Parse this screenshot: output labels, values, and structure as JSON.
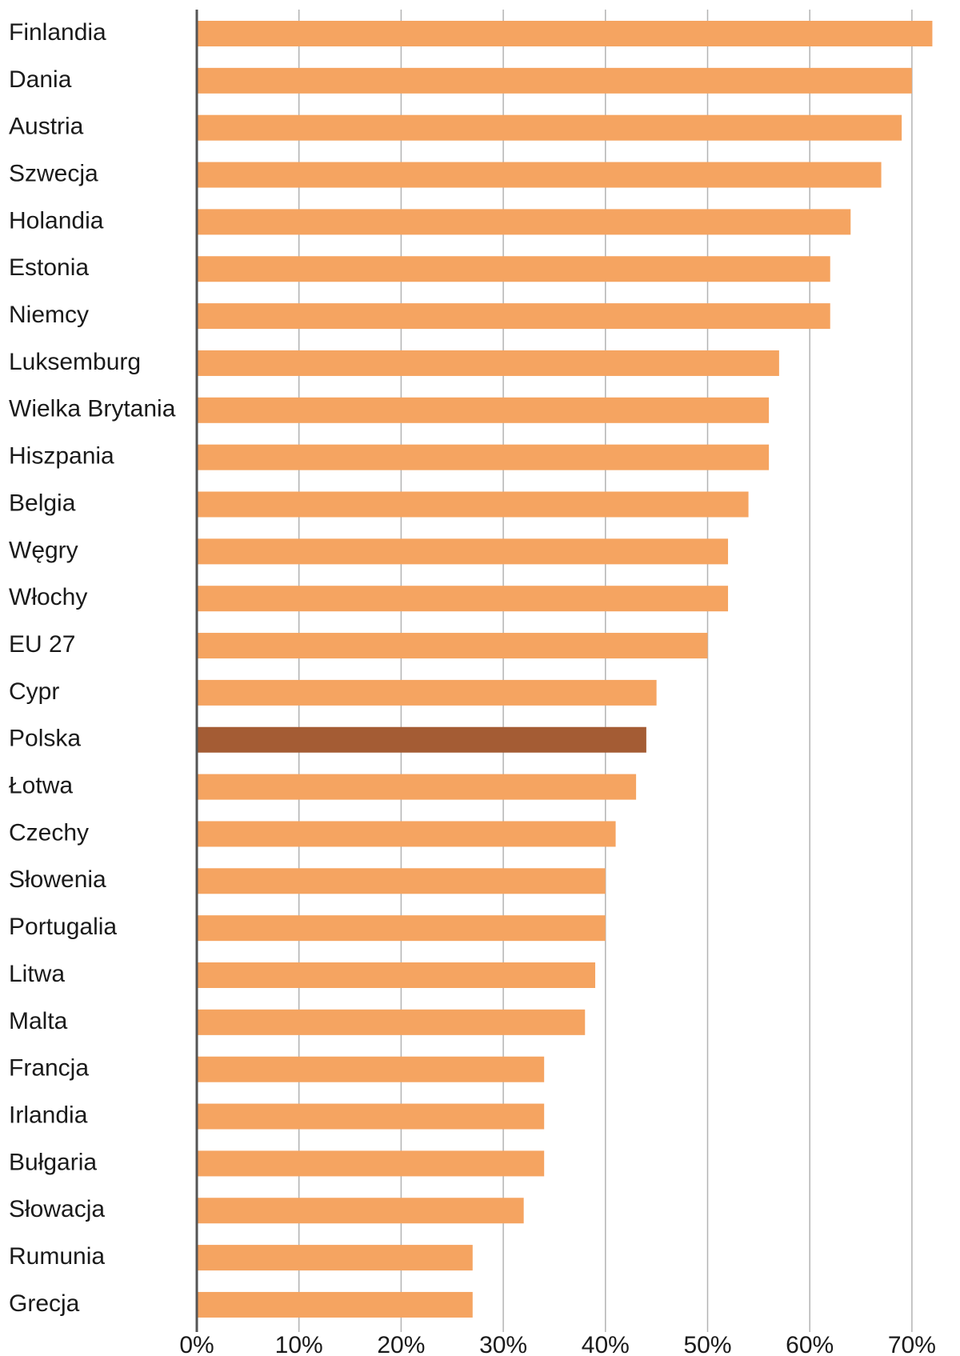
{
  "chart_data": {
    "type": "bar",
    "orientation": "horizontal",
    "categories": [
      "Finlandia",
      "Dania",
      "Austria",
      "Szwecja",
      "Holandia",
      "Estonia",
      "Niemcy",
      "Luksemburg",
      "Wielka Brytania",
      "Hiszpania",
      "Belgia",
      "Węgry",
      "Włochy",
      "EU 27",
      "Cypr",
      "Polska",
      "Łotwa",
      "Czechy",
      "Słowenia",
      "Portugalia",
      "Litwa",
      "Malta",
      "Francja",
      "Irlandia",
      "Bułgaria",
      "Słowacja",
      "Rumunia",
      "Grecja"
    ],
    "values": [
      72,
      70,
      69,
      67,
      64,
      62,
      62,
      57,
      56,
      56,
      54,
      52,
      52,
      50,
      45,
      44,
      43,
      41,
      40,
      40,
      39,
      38,
      34,
      34,
      34,
      32,
      27,
      27
    ],
    "unit": "%",
    "xlim": [
      0,
      70
    ],
    "xticks": [
      0,
      10,
      20,
      30,
      40,
      50,
      60,
      70
    ],
    "xtick_labels": [
      "0%",
      "10%",
      "20%",
      "30%",
      "40%",
      "50%",
      "60%",
      "70%"
    ],
    "highlight_category": "Polska",
    "grid": "vertical",
    "legend": "none"
  },
  "colors": {
    "bar": "#f5a461",
    "highlight_bar": "#a45c34",
    "gridline": "#b3b3b3",
    "axis": "#555555",
    "text": "#1a1a1a"
  }
}
